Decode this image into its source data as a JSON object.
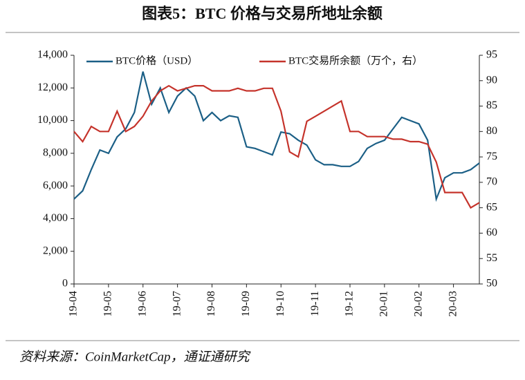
{
  "chart_data": {
    "type": "line",
    "title": "图表5：BTC 价格与交易所地址余额",
    "source": "资料来源：CoinMarketCap，通证通研究",
    "categories": [
      "19-04",
      null,
      null,
      null,
      "19-05",
      null,
      null,
      null,
      "19-06",
      null,
      null,
      null,
      "19-07",
      null,
      null,
      null,
      "19-08",
      null,
      null,
      null,
      "19-09",
      null,
      null,
      null,
      "19-10",
      null,
      null,
      null,
      "19-11",
      null,
      null,
      null,
      "19-12",
      null,
      null,
      null,
      "20-01",
      null,
      null,
      null,
      "20-02",
      null,
      null,
      null,
      "20-03",
      null,
      null,
      null
    ],
    "series": [
      {
        "name": "BTC价格（USD）",
        "color": "#1b5f86",
        "axis": "y",
        "values": [
          5200,
          5700,
          7000,
          8200,
          8000,
          9000,
          9500,
          10500,
          13000,
          11000,
          12000,
          10500,
          11500,
          12000,
          11500,
          10000,
          10500,
          10000,
          10300,
          10200,
          8400,
          8300,
          8100,
          7900,
          9300,
          9200,
          8800,
          8500,
          7600,
          7300,
          7300,
          7200,
          7200,
          7500,
          8300,
          8600,
          8800,
          9500,
          10200,
          10000,
          9800,
          8800,
          5200,
          6500,
          6800,
          6800,
          7000,
          7400
        ]
      },
      {
        "name": "BTC交易所余额（万个，右）",
        "color": "#c5332b",
        "axis": "y2",
        "values": [
          80,
          78,
          81,
          80,
          80,
          84,
          80,
          81,
          83,
          86,
          88,
          89,
          88,
          88.5,
          89,
          89,
          88,
          88,
          88,
          88.5,
          88,
          88,
          88.5,
          88.5,
          84,
          76,
          75,
          82,
          83,
          84,
          85,
          86,
          80,
          80,
          79,
          79,
          79,
          78.5,
          78.5,
          78,
          78,
          77.5,
          74,
          68,
          68,
          68,
          65,
          66
        ]
      }
    ],
    "ylim": [
      0,
      14000
    ],
    "yticks": [
      0,
      {
        "value": 2000,
        "label": "2,000"
      },
      {
        "value": 4000,
        "label": "4,000"
      },
      {
        "value": 6000,
        "label": "6,000"
      },
      {
        "value": 8000,
        "label": "8,000"
      },
      {
        "value": 10000,
        "label": "10,000"
      },
      {
        "value": 12000,
        "label": "12,000"
      },
      {
        "value": 14000,
        "label": "14,000"
      }
    ],
    "y2lim": [
      50,
      95
    ],
    "y2ticks": [
      50,
      55,
      60,
      65,
      70,
      75,
      80,
      85,
      90,
      95
    ],
    "legend": "top"
  }
}
